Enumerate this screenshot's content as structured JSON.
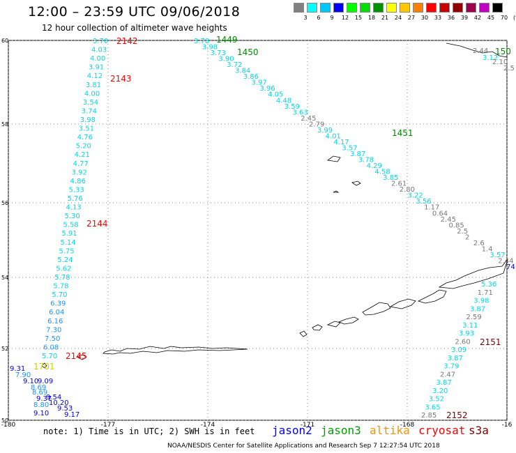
{
  "header": {
    "title": "12:00 – 23:59 UTC 09/06/2018",
    "subtitle": "12 hour collection of altimeter wave heights"
  },
  "colorbar": {
    "labels": [
      "3",
      "6",
      "9",
      "12",
      "15",
      "18",
      "21",
      "24",
      "27",
      "30",
      "33",
      "36",
      "39",
      "42",
      "45",
      "70",
      "(ft)"
    ],
    "colors": [
      "#808080",
      "#00ffff",
      "#00c8ff",
      "#0000ff",
      "#00ff00",
      "#00e000",
      "#009000",
      "#ffff00",
      "#ffc800",
      "#ff8000",
      "#ff0000",
      "#c80000",
      "#900000",
      "#a00050",
      "#c000c0",
      "#000000"
    ]
  },
  "map": {
    "lat_labels": [
      "60",
      "58",
      "56",
      "54",
      "52",
      "50"
    ],
    "lon_labels": [
      "-180",
      "-177",
      "-174",
      "-171",
      "-168",
      "-16"
    ],
    "colors": {
      "jason2": "#00d8e8",
      "jason3": "#008800",
      "altika": "#e08000",
      "cryosat": "#ff0000",
      "s3a": "#800000",
      "low": "#777777",
      "mid": "#1e90ff",
      "high": "#0000dd"
    },
    "passes": [
      {
        "label": "2142",
        "sat": "cryosat"
      },
      {
        "label": "2143",
        "sat": "cryosat"
      },
      {
        "label": "2144",
        "sat": "cryosat"
      },
      {
        "label": "2145",
        "sat": "cryosat"
      },
      {
        "label": "1449",
        "sat": "jason3"
      },
      {
        "label": "1450",
        "sat": "jason3"
      },
      {
        "label": "1451",
        "sat": "jason3"
      },
      {
        "label": "150",
        "sat": "jason3"
      },
      {
        "label": "2151",
        "sat": "s3a"
      },
      {
        "label": "2152",
        "sat": "s3a"
      },
      {
        "label": "1701",
        "sat": "altika"
      }
    ],
    "track_a": [
      "3.70",
      "4.03",
      "4.00",
      "3.91",
      "4.12",
      "3.81",
      "4.00",
      "3.54",
      "3.74",
      "3.98",
      "3.51",
      "4.76",
      "5.20",
      "4.21",
      "4.77",
      "3.92",
      "4.86",
      "5.33",
      "5.76",
      "4.13",
      "5.30",
      "5.58",
      "5.91",
      "5.14",
      "5.75",
      "5.24",
      "5.62",
      "5.78",
      "5.78",
      "5.70",
      "6.39",
      "6.04",
      "6.16",
      "7.30",
      "7.50",
      "6.08",
      "5.70"
    ],
    "track_b": [
      "3.78",
      "3.98",
      "3.73",
      "3.90",
      "3.72",
      "3.84",
      "3.86",
      "3.97",
      "3.96",
      "4.05",
      "4.48",
      "3.59",
      "3.63",
      "2.45",
      "2.79",
      "3.99",
      "4.01",
      "4.17",
      "3.57",
      "3.87",
      "3.78",
      "4.29",
      "4.58",
      "3.85",
      "2.61",
      "2.80",
      "3.22",
      "3.56",
      "1.17",
      "0.64",
      "2.45",
      "0.85",
      "2.5",
      "2",
      "2.6",
      "1.4",
      "3.57",
      "2.44",
      "74"
    ],
    "track_c": [
      "5.36",
      "1.71",
      "3.98",
      "3.87",
      "2.59",
      "3.11",
      "3.93",
      "2.60",
      "3.09",
      "3.87",
      "3.79",
      "2.47",
      "3.87",
      "3.20",
      "3.52",
      "3.65",
      "2.85"
    ],
    "track_corner": [
      "2.44",
      "3.12",
      "2.10",
      "2.5"
    ],
    "track_sw": [
      "9.31",
      "7.90",
      "9.10",
      "8.69",
      "8.69",
      "9.09",
      "9.37",
      "9.54",
      "8.80",
      "10.20",
      "9.10",
      "9.53",
      "9.17"
    ]
  },
  "footer": {
    "note": "note: 1) Time is in UTC; 2) SWH is in feet",
    "sat_names": {
      "jason2": "jason2",
      "jason3": "jason3",
      "altika": "altika",
      "cryosat": "cryosat",
      "s3a": "s3a"
    },
    "credit": "NOAA/NESDIS Center for Satellite Applications and Research    Sep  7 12:27:54 UTC 2018"
  }
}
